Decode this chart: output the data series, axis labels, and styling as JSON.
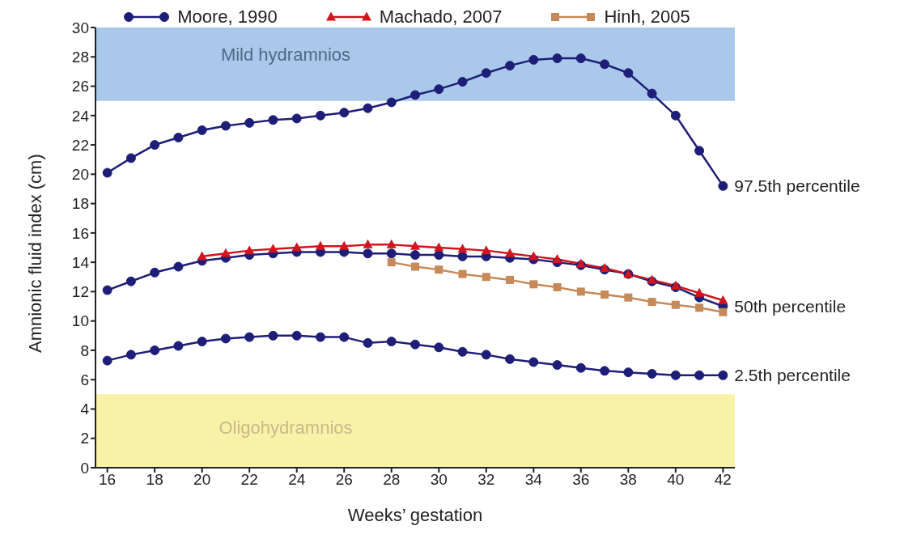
{
  "chart_data": {
    "type": "line",
    "xlabel": "Weeks’ gestation",
    "ylabel": "Amnionic fluid index (cm)",
    "xlim": [
      15.5,
      42.5
    ],
    "xticks": [
      16,
      18,
      20,
      22,
      24,
      26,
      28,
      30,
      32,
      34,
      36,
      38,
      40,
      42
    ],
    "ylim": [
      0,
      30
    ],
    "yticks": [
      0,
      2,
      4,
      6,
      8,
      10,
      12,
      14,
      16,
      18,
      20,
      22,
      24,
      26,
      28,
      30
    ],
    "grid": false,
    "legend": "top",
    "line_style": "solid",
    "series": [
      {
        "name": "Moore, 1990",
        "color": "#1e1e78",
        "marker": "circle",
        "x": [
          16,
          17,
          18,
          19,
          20,
          21,
          22,
          23,
          24,
          25,
          26,
          27,
          28,
          29,
          30,
          31,
          32,
          33,
          34,
          35,
          36,
          37,
          38,
          39,
          40,
          41,
          42
        ],
        "values": [
          20.1,
          21.1,
          22.0,
          22.5,
          23.0,
          23.3,
          23.5,
          23.7,
          23.8,
          24.0,
          24.2,
          24.5,
          24.9,
          25.4,
          25.8,
          26.3,
          26.9,
          27.4,
          27.8,
          27.9,
          27.9,
          27.5,
          26.9,
          25.5,
          24.0,
          21.6,
          19.2
        ]
      },
      {
        "color": "#1e1e78",
        "marker": "circle",
        "x": [
          16,
          17,
          18,
          19,
          20,
          21,
          22,
          23,
          24,
          25,
          26,
          27,
          28,
          29,
          30,
          31,
          32,
          33,
          34,
          35,
          36,
          37,
          38,
          39,
          40,
          41,
          42
        ],
        "values": [
          12.1,
          12.7,
          13.3,
          13.7,
          14.1,
          14.3,
          14.5,
          14.6,
          14.7,
          14.7,
          14.7,
          14.6,
          14.6,
          14.5,
          14.5,
          14.4,
          14.4,
          14.3,
          14.2,
          14.0,
          13.8,
          13.5,
          13.2,
          12.7,
          12.3,
          11.6,
          11.0
        ]
      },
      {
        "color": "#1e1e78",
        "marker": "circle",
        "x": [
          16,
          17,
          18,
          19,
          20,
          21,
          22,
          23,
          24,
          25,
          26,
          27,
          28,
          29,
          30,
          31,
          32,
          33,
          34,
          35,
          36,
          37,
          38,
          39,
          40,
          41,
          42
        ],
        "values": [
          7.3,
          7.7,
          8.0,
          8.3,
          8.6,
          8.8,
          8.9,
          9.0,
          9.0,
          8.9,
          8.9,
          8.5,
          8.6,
          8.4,
          8.2,
          7.9,
          7.7,
          7.4,
          7.2,
          7.0,
          6.8,
          6.6,
          6.5,
          6.4,
          6.3,
          6.3,
          6.3
        ]
      },
      {
        "name": "Machado, 2007",
        "color": "#d4141c",
        "marker": "triangle",
        "x": [
          20,
          21,
          22,
          23,
          24,
          25,
          26,
          27,
          28,
          29,
          30,
          31,
          32,
          33,
          34,
          35,
          36,
          37,
          38,
          39,
          40,
          41,
          42
        ],
        "values": [
          14.4,
          14.6,
          14.8,
          14.9,
          15.0,
          15.1,
          15.1,
          15.2,
          15.2,
          15.1,
          15.0,
          14.9,
          14.8,
          14.6,
          14.4,
          14.2,
          13.9,
          13.6,
          13.2,
          12.8,
          12.4,
          11.9,
          11.4
        ]
      },
      {
        "name": "Hinh, 2005",
        "color": "#c68a5a",
        "marker": "square",
        "x": [
          28,
          29,
          30,
          31,
          32,
          33,
          34,
          35,
          36,
          37,
          38,
          39,
          40,
          41,
          42
        ],
        "values": [
          14.0,
          13.7,
          13.5,
          13.2,
          13.0,
          12.8,
          12.5,
          12.3,
          12.0,
          11.8,
          11.6,
          11.3,
          11.1,
          10.9,
          10.6
        ]
      }
    ],
    "bands": [
      {
        "axis": "y",
        "from": 25,
        "to": 30,
        "label": "Mild hydramnios",
        "color": "#a9c8ea"
      },
      {
        "axis": "y",
        "from": 0,
        "to": 5,
        "label": "Oligohydramnios",
        "color": "#f7f2a8"
      }
    ],
    "annotations": [
      "97.5th percentile",
      "50th percentile",
      "2.5th percentile"
    ]
  }
}
